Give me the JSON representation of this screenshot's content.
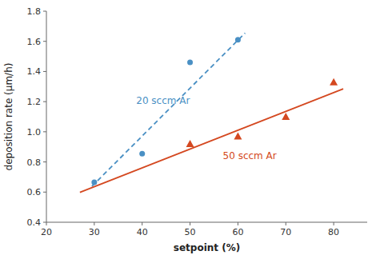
{
  "chart_data": {
    "type": "scatter",
    "xlabel": "setpoint (%)",
    "ylabel": "deposition rate (μm/h)",
    "xlim": [
      20,
      87
    ],
    "ylim": [
      0.4,
      1.8
    ],
    "xticks": [
      20,
      30,
      40,
      50,
      60,
      70,
      80
    ],
    "yticks": [
      0.4,
      0.6,
      0.8,
      {
        "value": 1.0,
        "label": "1.0"
      },
      1.2,
      1.4,
      1.6,
      1.8
    ],
    "grid": false,
    "series": [
      {
        "type": "line",
        "color": "#4a90c4",
        "line_style": "dashed",
        "x": [
          29.5,
          61.5
        ],
        "values": [
          0.638,
          1.655
        ]
      },
      {
        "type": "scatter",
        "color": "#4a90c4",
        "marker": "circle",
        "x": [
          30,
          40,
          50,
          60
        ],
        "values": [
          0.665,
          0.855,
          1.46,
          1.61
        ]
      },
      {
        "type": "line",
        "color": "#d44820",
        "line_style": "solid",
        "x": [
          27,
          82
        ],
        "values": [
          0.598,
          1.285
        ]
      },
      {
        "type": "scatter",
        "color": "#d44820",
        "marker": "triangle",
        "x": [
          50,
          60,
          70,
          80
        ],
        "values": [
          0.92,
          0.97,
          1.1,
          1.33
        ]
      }
    ],
    "annotations": [
      {
        "text": "20 sccm Ar",
        "color": "#4a90c4"
      },
      {
        "text": "50 sccm Ar",
        "color": "#d44820"
      }
    ]
  }
}
